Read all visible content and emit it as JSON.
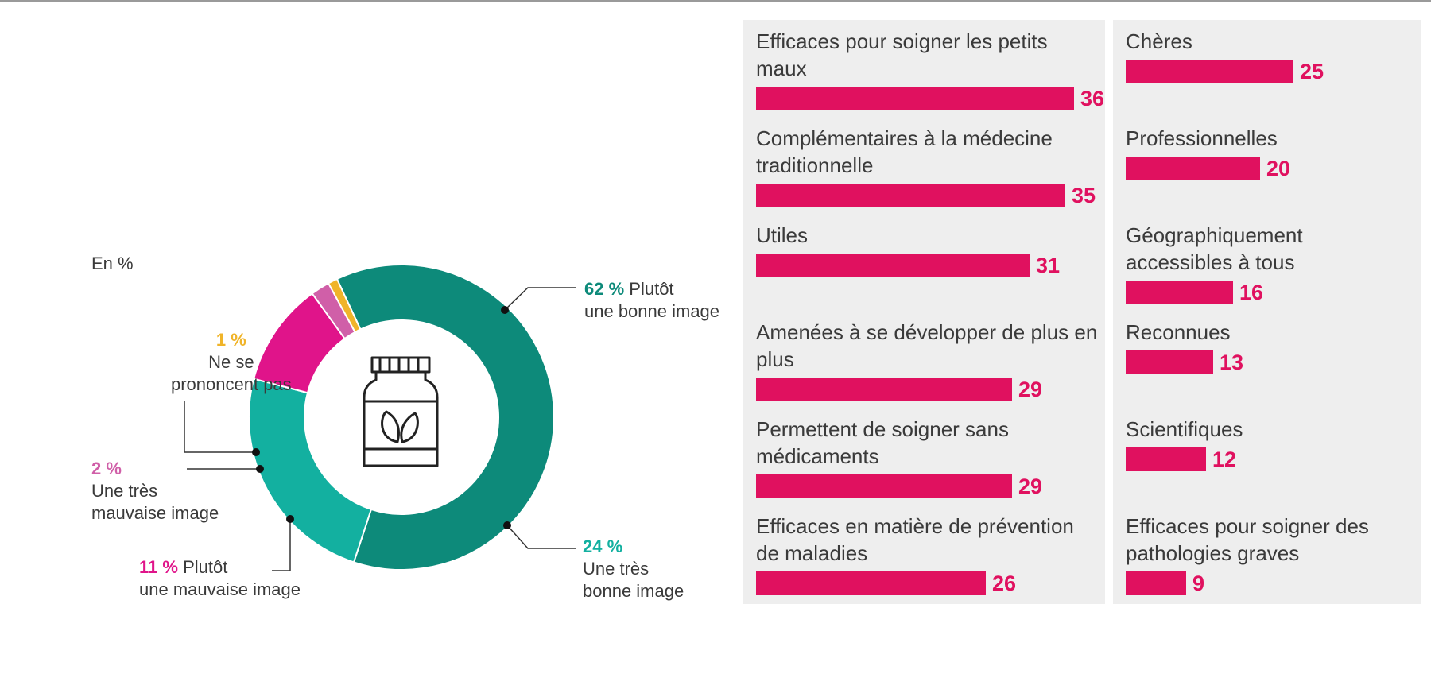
{
  "unit_label": "En %",
  "colors": {
    "bar": "#e0115f",
    "panel_bg": "#eeeeee",
    "donut_bonne": "#0d8a7a",
    "donut_tres_bonne": "#13b0a0",
    "donut_mauvaise": "#e0148a",
    "donut_tres_mauvaise": "#d05fa8",
    "donut_nsp": "#f0b429"
  },
  "chart_data": [
    {
      "type": "pie",
      "donut": true,
      "unit": "En %",
      "center_icon": "medicine-bottle-leaf-icon",
      "slices": [
        {
          "value": 62,
          "pct_label": "62 %",
          "text_line1": "Plutôt",
          "text_line2": "une bonne image",
          "color": "#0d8a7a"
        },
        {
          "value": 24,
          "pct_label": "24 %",
          "text_line1": "Une très",
          "text_line2": "bonne image",
          "color": "#13b0a0"
        },
        {
          "value": 11,
          "pct_label": "11 %",
          "text_line1": "Plutôt",
          "text_line2": "une mauvaise image",
          "color": "#e0148a"
        },
        {
          "value": 2,
          "pct_label": "2 %",
          "text_line1": "Une très",
          "text_line2": "mauvaise image",
          "color": "#d05fa8"
        },
        {
          "value": 1,
          "pct_label": "1 %",
          "text_line1": "Ne se",
          "text_line2": "prononcent pas",
          "color": "#f0b429"
        }
      ]
    },
    {
      "type": "bar",
      "orientation": "horizontal",
      "max_value": 36,
      "groups": [
        {
          "items": [
            {
              "label": "Efficaces pour soigner les petits maux",
              "value": 36
            },
            {
              "label": "Complémentaires à la médecine traditionnelle",
              "value": 35
            },
            {
              "label": "Utiles",
              "value": 31
            },
            {
              "label": "Amenées à se développer de plus en plus",
              "value": 29
            },
            {
              "label": "Permettent de soigner sans médicaments",
              "value": 29
            },
            {
              "label": "Efficaces en matière de prévention de maladies",
              "value": 26
            }
          ]
        },
        {
          "items": [
            {
              "label": "Chères",
              "value": 25
            },
            {
              "label": "Professionnelles",
              "value": 20
            },
            {
              "label": "Géographiquement accessibles à tous",
              "value": 16
            },
            {
              "label": "Reconnues",
              "value": 13
            },
            {
              "label": "Scientifiques",
              "value": 12
            },
            {
              "label": "Efficaces pour soigner des pathologies graves",
              "value": 9
            }
          ]
        }
      ]
    }
  ]
}
